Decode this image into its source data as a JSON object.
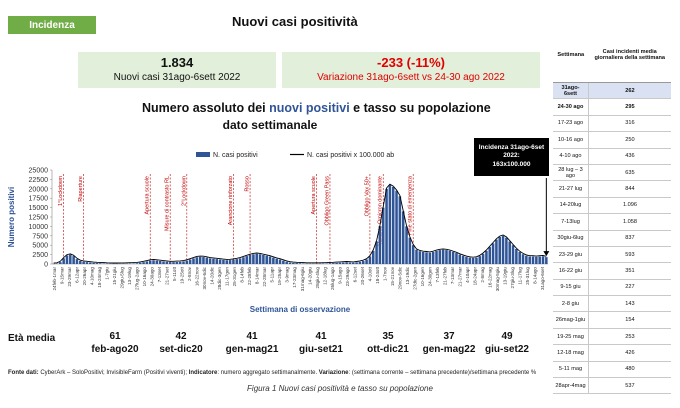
{
  "tag": "Incidenza",
  "title": "Nuovi casi positività",
  "kpi_left": {
    "value": "1.834",
    "label": "Nuovi casi 31ago-6sett 2022"
  },
  "kpi_right": {
    "value": "-233 (-11%)",
    "label": "Variazione 31ago-6sett vs 24-30 ago 2022"
  },
  "chart_title_pre": "Numero assoluto dei ",
  "chart_title_hl": "nuovi positivi",
  "chart_title_post": " e tasso su popolazione",
  "chart_subtitle": "dato settimanale",
  "callout": {
    "line1": "Incidenza 31ago-6set 2022:",
    "line2": "163x100.000"
  },
  "colors": {
    "bar": "#2f5597",
    "line": "#000000",
    "event": "#c00000",
    "kpi_bg": "#e2efda",
    "tag_bg": "#70ad47",
    "accent_red": "#e00000"
  },
  "chart_data": {
    "type": "bar",
    "ylabel": "Numero positivi",
    "xlabel": "Settimana di osservazione",
    "ylim": [
      0,
      25000
    ],
    "yticks": [
      0,
      2500,
      5000,
      7500,
      10000,
      12500,
      15000,
      17500,
      20000,
      22500,
      25000
    ],
    "series": [
      {
        "name": "N. casi positivi",
        "type": "bar"
      },
      {
        "name": "N. casi positivi x 100.000 ab",
        "type": "line"
      }
    ],
    "values": [
      50,
      100,
      500,
      1500,
      2300,
      2500,
      2100,
      1300,
      800,
      600,
      500,
      400,
      300,
      250,
      200,
      150,
      100,
      80,
      60,
      60,
      70,
      80,
      100,
      120,
      150,
      200,
      350,
      500,
      700,
      900,
      1000,
      900,
      800,
      700,
      600,
      500,
      500,
      550,
      600,
      700,
      900,
      1200,
      1500,
      1800,
      1900,
      1850,
      1700,
      1500,
      1400,
      1300,
      1200,
      1100,
      1000,
      1050,
      1150,
      1300,
      1500,
      1800,
      2100,
      2400,
      2600,
      2700,
      2600,
      2400,
      2200,
      2000,
      1700,
      1400,
      1200,
      900,
      600,
      400,
      300,
      250,
      200,
      150,
      100,
      100,
      100,
      100,
      110,
      130,
      150,
      200,
      250,
      300,
      350,
      400,
      450,
      400,
      350,
      450,
      600,
      800,
      1200,
      2000,
      3500,
      6000,
      10000,
      15000,
      20000,
      21000,
      20500,
      19500,
      18000,
      14000,
      10000,
      7000,
      5000,
      3800,
      3400,
      3200,
      3100,
      3000,
      3200,
      3500,
      3700,
      3800,
      3700,
      3500,
      3200,
      2900,
      2500,
      2200,
      1900,
      1700,
      1600,
      1700,
      2100,
      2700,
      3500,
      4500,
      5500,
      6500,
      7200,
      7500,
      7000,
      6000,
      5000,
      4000,
      3200,
      2600,
      2200,
      2000,
      2000,
      1900,
      2000,
      2067,
      1834
    ],
    "x_tick_labels": [
      "24feb-1mar",
      "9-15mar",
      "23-29mar",
      "6-12apr",
      "20-26apr",
      "4-10mag",
      "18-24mag",
      "1-7giu",
      "15-21giu",
      "29giu-5lug",
      "13-19lug",
      "27lug-2ago",
      "10-16ago",
      "24-30ago",
      "7-13set",
      "21-27set",
      "5-11ott",
      "19-25ott",
      "2-8nov",
      "16-22nov",
      "30nov-6dic",
      "14-20dic",
      "28dic-3gen",
      "11-17gen",
      "25-31gen",
      "8-14feb",
      "22-28feb",
      "8-14mar",
      "22-28mar",
      "5-11apr",
      "19-25apr",
      "3-9mag",
      "17-23mag",
      "31mag-6giu",
      "14-20giu",
      "28giu-4lug",
      "12-18lug",
      "26lug-1ago",
      "9-15ago",
      "23-29ago",
      "6-12set",
      "20-26set",
      "4-10ott",
      "18-24ott",
      "1-7nov",
      "15-21nov",
      "29nov-5dic",
      "13-19dic",
      "27dic-2gen",
      "10-16gen",
      "24-30gen",
      "7-13feb",
      "21-27feb",
      "7-13mar",
      "21-27mar",
      "4-10apr",
      "18-24apr",
      "2-8mag",
      "16-22mag",
      "30mag-5giu",
      "13-19giu",
      "27giu-3lug",
      "11-17lug",
      "25-31lug",
      "8-14ago",
      "31ago-6set"
    ],
    "events": [
      {
        "label": "1°Lockdown",
        "index": 3
      },
      {
        "label": "Riaperture",
        "index": 9
      },
      {
        "label": "Apertura scuole",
        "index": 29
      },
      {
        "label": "Misure di contrasto RL",
        "index": 35
      },
      {
        "label": "2°Lockdown",
        "index": 40
      },
      {
        "label": "Arancione rinforzato",
        "index": 54
      },
      {
        "label": "Rosso",
        "index": 59
      },
      {
        "label": "Apertura scuole",
        "index": 79
      },
      {
        "label": "Obbligo Green Pass",
        "index": 83
      },
      {
        "label": "Obbligo Vax 50+",
        "index": 95
      },
      {
        "label": "Variante Omicron dominante",
        "index": 99
      },
      {
        "label": "Fine stato di emergenza",
        "index": 108
      }
    ]
  },
  "eta": {
    "label": "Età media",
    "items": [
      {
        "age": "61",
        "period": "feb-ago20"
      },
      {
        "age": "42",
        "period": "set-dic20"
      },
      {
        "age": "41",
        "period": "gen-mag21"
      },
      {
        "age": "41",
        "period": "giu-set21"
      },
      {
        "age": "35",
        "period": "ott-dic21"
      },
      {
        "age": "37",
        "period": "gen-mag22"
      },
      {
        "age": "49",
        "period": "giu-set22"
      }
    ]
  },
  "table": {
    "head_week": "Settimana",
    "head_val": "Casi incidenti media giornaliera della settimana",
    "rows": [
      {
        "week": "31ago-6sett",
        "val": "262",
        "bold": true,
        "first": true
      },
      {
        "week": "24-30 ago",
        "val": "295",
        "bold": true
      },
      {
        "week": "17-23 ago",
        "val": "316"
      },
      {
        "week": "10-16 ago",
        "val": "250"
      },
      {
        "week": "4-10 ago",
        "val": "436"
      },
      {
        "week": "28 lug – 3 ago",
        "val": "635"
      },
      {
        "week": "21-27 lug",
        "val": "844"
      },
      {
        "week": "14-20lug",
        "val": "1.096"
      },
      {
        "week": "7-13lug",
        "val": "1.058"
      },
      {
        "week": "30giu-6lug",
        "val": "837"
      },
      {
        "week": "23-29 giu",
        "val": "593"
      },
      {
        "week": "16-22 giu",
        "val": "351"
      },
      {
        "week": "9-15 giu",
        "val": "227"
      },
      {
        "week": "2-8 giu",
        "val": "143"
      },
      {
        "week": "26mag-1giu",
        "val": "154"
      },
      {
        "week": "19-25 mag",
        "val": "253"
      },
      {
        "week": "12-18 mag",
        "val": "426"
      },
      {
        "week": "5-11 mag",
        "val": "480"
      },
      {
        "week": "28apr-4mag",
        "val": "537"
      }
    ]
  },
  "source": {
    "lead": "Fonte dati:",
    "text1": " CyberArk – SoloPositivi; InvisibleFarm (Positivi viventi); ",
    "ind": "Indicatore",
    "text2": ": numero aggregato settimanalmente. ",
    "var": "Variazione",
    "text3": ": (settimana corrente – settimana precedente)/settimana precedente %"
  },
  "caption": "Figura 1 Nuovi casi positività e tasso su popolazione"
}
